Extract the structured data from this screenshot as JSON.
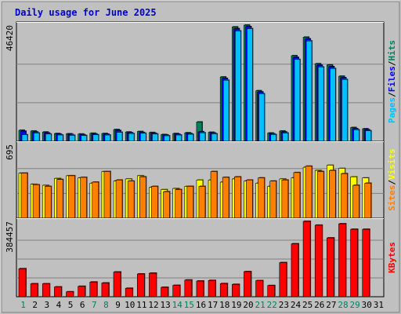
{
  "colors": {
    "background": "#c0c0c0",
    "plot_background": "#c0c0c0",
    "gridline": "#808080",
    "title": "#0000cc",
    "hits": "#00805c",
    "files": "#0000ff",
    "pages": "#00c0ff",
    "visits": "#ffff00",
    "sites": "#ff8000",
    "kbytes": "#ff0000",
    "weekday_label": "#000000",
    "weekend_label": "#00805c"
  },
  "chart_data": {
    "type": "bar",
    "title": "Daily usage for June 2025",
    "categories": [
      "1",
      "2",
      "3",
      "4",
      "5",
      "6",
      "7",
      "8",
      "9",
      "10",
      "11",
      "12",
      "13",
      "14",
      "15",
      "16",
      "17",
      "18",
      "19",
      "20",
      "21",
      "22",
      "23",
      "24",
      "25",
      "26",
      "27",
      "28",
      "29",
      "30",
      "31"
    ],
    "weekend_days": [
      "1",
      "7",
      "8",
      "14",
      "15",
      "21",
      "22",
      "28",
      "29"
    ],
    "panels": [
      {
        "name": "hits-files-pages",
        "y_max_label": "46420",
        "ylim": [
          0,
          46420
        ],
        "legend": [
          "Pages",
          "/",
          "Files",
          "/",
          "Hits"
        ],
        "series": [
          {
            "name": "Hits",
            "color": "#00805c",
            "values": [
              4400,
              4100,
              3700,
              3100,
              3000,
              2900,
              3200,
              3100,
              4700,
              3700,
              3900,
              3500,
              2700,
              3100,
              3400,
              7700,
              3600,
              25700,
              45700,
              46420,
              20200,
              3300,
              4100,
              34200,
              41600,
              31000,
              30500,
              26000,
              5500,
              5000,
              0
            ]
          },
          {
            "name": "Files",
            "color": "#0000ff",
            "values": [
              4000,
              3700,
              3300,
              2800,
              2700,
              2600,
              2900,
              2800,
              4300,
              3400,
              3500,
              3200,
              2500,
              2800,
              3100,
              3800,
              3300,
              25100,
              45000,
              45800,
              19700,
              3000,
              3700,
              33500,
              40900,
              30400,
              29800,
              25400,
              5000,
              4600,
              0
            ]
          },
          {
            "name": "Pages",
            "color": "#00c0ff",
            "values": [
              2600,
              3300,
              2900,
              2500,
              2400,
              2300,
              2600,
              2500,
              3600,
              3100,
              3200,
              2900,
              2200,
              2500,
              2800,
              3400,
              3000,
              24400,
              44100,
              45000,
              19000,
              2700,
              3300,
              32700,
              40100,
              29700,
              29100,
              24700,
              4600,
              4200,
              0
            ]
          }
        ]
      },
      {
        "name": "visits-sites",
        "y_max_label": "695",
        "ylim": [
          0,
          695
        ],
        "legend": [
          "Sites",
          "/",
          "Visits"
        ],
        "series": [
          {
            "name": "Visits",
            "color": "#ffff00",
            "values": [
              425,
              320,
              310,
              375,
              400,
              380,
              330,
              440,
              350,
              370,
              400,
              290,
              270,
              280,
              300,
              360,
              360,
              340,
              370,
              350,
              330,
              300,
              370,
              380,
              480,
              450,
              500,
              470,
              390,
              380,
              0
            ]
          },
          {
            "name": "Sites",
            "color": "#ff8000",
            "values": [
              425,
              315,
              300,
              365,
              400,
              385,
              340,
              440,
              360,
              350,
              390,
              300,
              250,
              270,
              300,
              300,
              440,
              385,
              390,
              360,
              380,
              350,
              360,
              430,
              490,
              440,
              450,
              420,
              310,
              330,
              0
            ]
          }
        ]
      },
      {
        "name": "kbytes",
        "y_max_label": "384457",
        "ylim": [
          0,
          384457
        ],
        "legend": [
          "KBytes"
        ],
        "series": [
          {
            "name": "KBytes",
            "color": "#ff0000",
            "values": [
              143000,
              66000,
              66000,
              50000,
              25000,
              53000,
              75000,
              70000,
              126000,
              43000,
              116000,
              120000,
              48000,
              58000,
              85000,
              80000,
              83000,
              67000,
              63000,
              128000,
              82000,
              57000,
              174000,
              270000,
              384457,
              365000,
              300000,
              372000,
              344000,
              344000,
              0
            ]
          }
        ]
      }
    ]
  }
}
